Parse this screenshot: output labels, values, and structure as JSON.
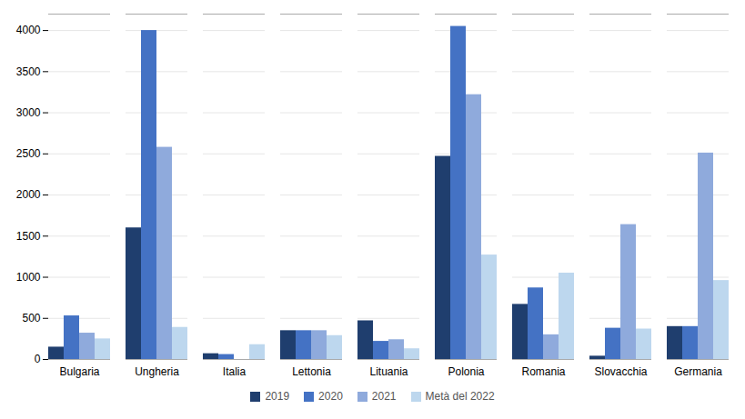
{
  "chart_data": {
    "type": "bar",
    "categories": [
      "Bulgaria",
      "Ungheria",
      "Italia",
      "Lettonia",
      "Lituania",
      "Polonia",
      "Romania",
      "Slovacchia",
      "Germania"
    ],
    "series": [
      {
        "name": "2019",
        "color": "#1f3e6e",
        "values": [
          150,
          1600,
          70,
          350,
          470,
          2470,
          670,
          40,
          400
        ]
      },
      {
        "name": "2020",
        "color": "#4472c4",
        "values": [
          530,
          4000,
          60,
          350,
          220,
          4050,
          870,
          380,
          400
        ]
      },
      {
        "name": "2021",
        "color": "#8faadc",
        "values": [
          320,
          2580,
          0,
          350,
          240,
          3220,
          300,
          1640,
          2510
        ]
      },
      {
        "name": "Metà del 2022",
        "color": "#bdd7ee",
        "values": [
          250,
          390,
          180,
          290,
          130,
          1270,
          1050,
          370,
          960
        ]
      }
    ],
    "ylim": [
      0,
      4200
    ],
    "yticks": [
      0,
      500,
      1000,
      1500,
      2000,
      2500,
      3000,
      3500,
      4000
    ],
    "grid": true,
    "legend": "bottom"
  }
}
